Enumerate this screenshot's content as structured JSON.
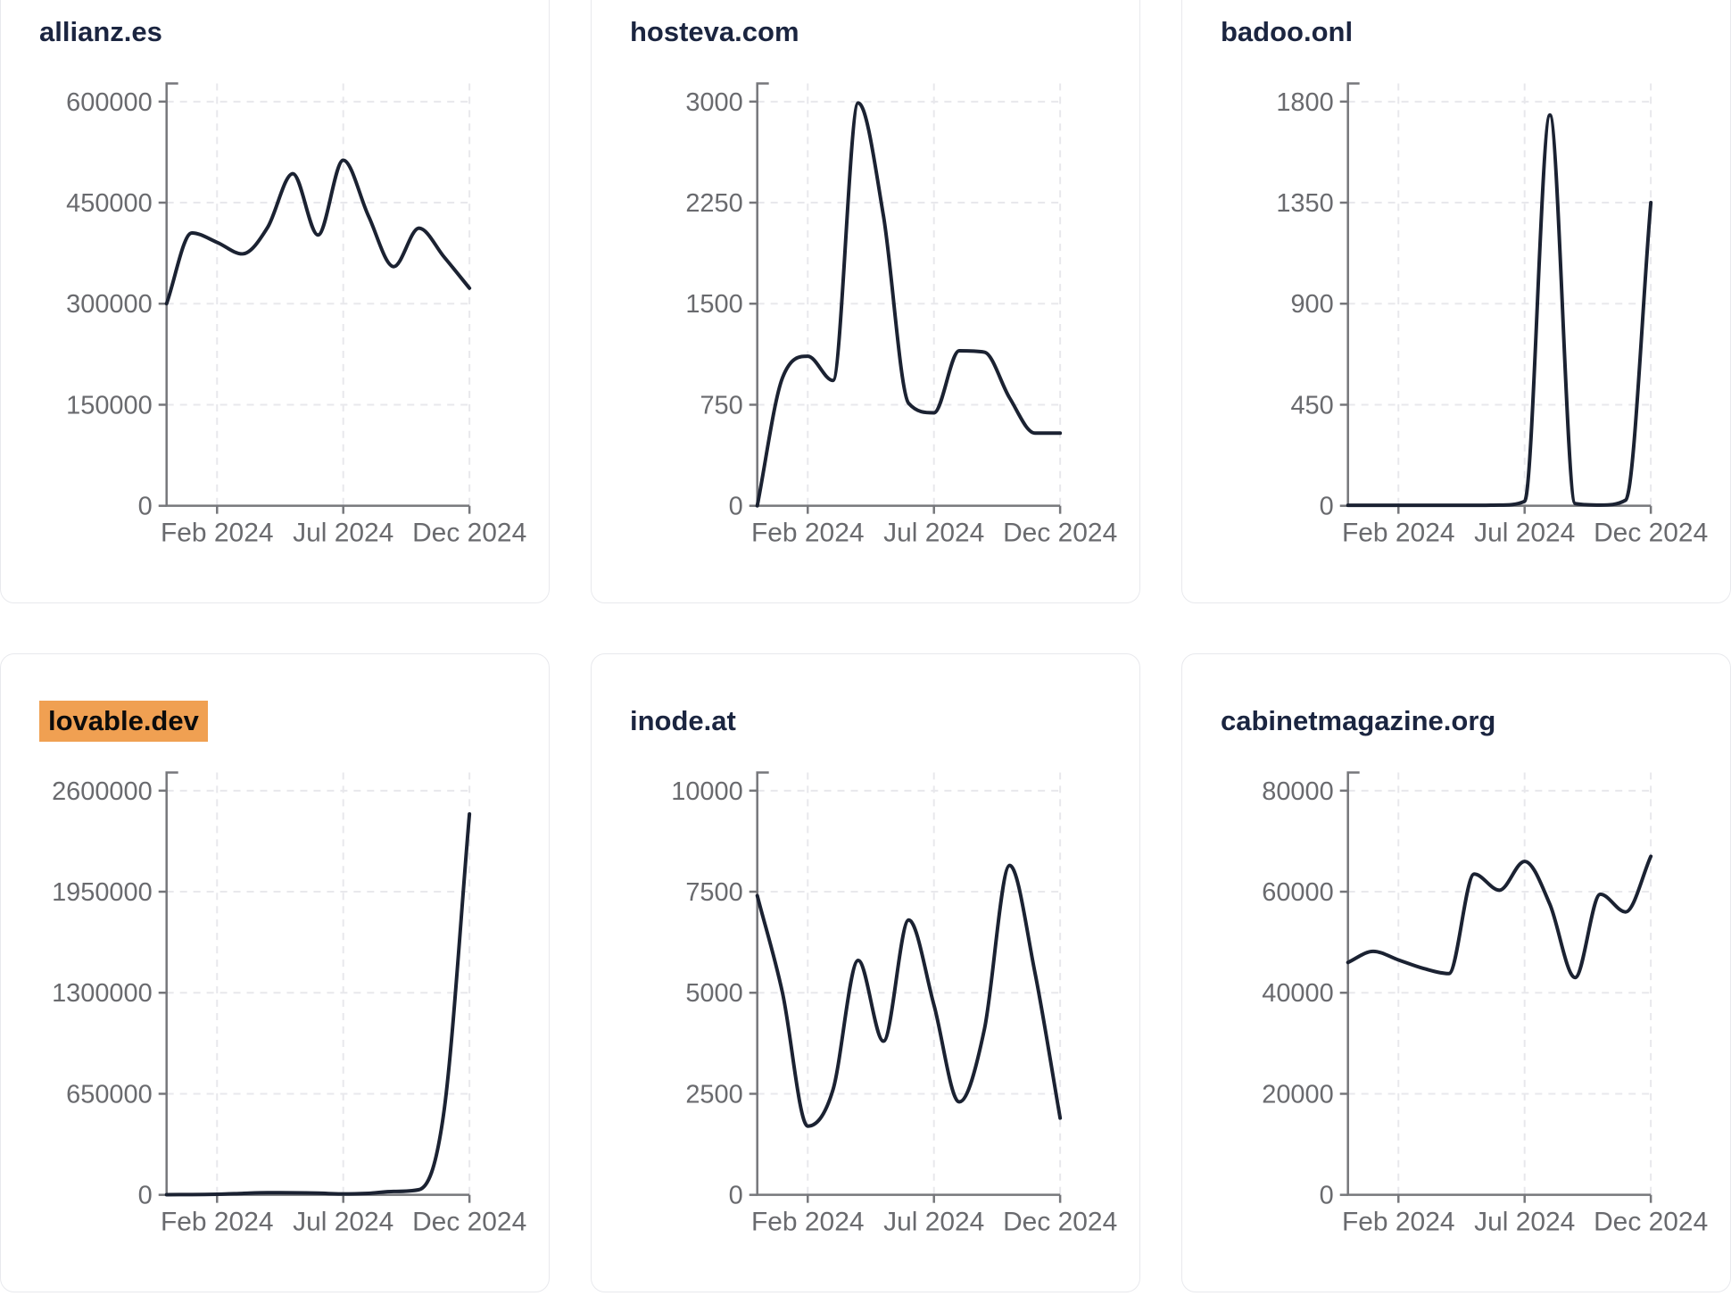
{
  "layout": {
    "rows": 2,
    "cols": 3
  },
  "style": {
    "background": "#ffffff",
    "card_border": "#e8e9ed",
    "title_color": "#1b2540",
    "line_color": "#1b2232",
    "axis_color": "#76777b",
    "tick_label_color": "#696a6e",
    "grid_color": "#e8e8ec",
    "highlight_bg": "#f0a052",
    "highlight_text": "#0c0c0c"
  },
  "chart_data": [
    {
      "type": "line",
      "title": "allianz.es",
      "highlighted": false,
      "n_points": 13,
      "values": [
        300000,
        405000,
        391000,
        374000,
        413000,
        493000,
        402000,
        513000,
        430000,
        355000,
        412000,
        369000,
        323000
      ],
      "y_ticks": [
        0,
        150000,
        300000,
        450000,
        600000
      ],
      "ylim": [
        0,
        627000
      ],
      "x_tick_labels": [
        "Feb 2024",
        "Jul 2024",
        "Dec 2024"
      ],
      "x_tick_indices": [
        2,
        7,
        12
      ],
      "grid": true,
      "legend": false
    },
    {
      "type": "line",
      "title": "hosteva.com",
      "highlighted": false,
      "n_points": 13,
      "values": [
        0,
        950,
        1110,
        930,
        2990,
        2150,
        760,
        690,
        1150,
        1140,
        800,
        540,
        540
      ],
      "y_ticks": [
        0,
        750,
        1500,
        2250,
        3000
      ],
      "ylim": [
        0,
        3135
      ],
      "x_tick_labels": [
        "Feb 2024",
        "Jul 2024",
        "Dec 2024"
      ],
      "x_tick_indices": [
        2,
        7,
        12
      ],
      "grid": true,
      "legend": false
    },
    {
      "type": "line",
      "title": "badoo.onl",
      "highlighted": false,
      "n_points": 13,
      "values": [
        2,
        2,
        2,
        2,
        2,
        2,
        3,
        20,
        1740,
        10,
        3,
        25,
        1350
      ],
      "y_ticks": [
        0,
        450,
        900,
        1350,
        1800
      ],
      "ylim": [
        0,
        1881
      ],
      "x_tick_labels": [
        "Feb 2024",
        "Jul 2024",
        "Dec 2024"
      ],
      "x_tick_indices": [
        2,
        7,
        12
      ],
      "grid": true,
      "legend": false
    },
    {
      "type": "line",
      "title": "lovable.dev",
      "highlighted": true,
      "n_points": 13,
      "values": [
        1000,
        2000,
        4000,
        9000,
        14000,
        13000,
        11000,
        6000,
        10000,
        22000,
        33000,
        550000,
        2450000
      ],
      "y_ticks": [
        0,
        650000,
        1300000,
        1950000,
        2600000
      ],
      "ylim": [
        0,
        2717000
      ],
      "x_tick_labels": [
        "Feb 2024",
        "Jul 2024",
        "Dec 2024"
      ],
      "x_tick_indices": [
        2,
        7,
        12
      ],
      "grid": true,
      "legend": false
    },
    {
      "type": "line",
      "title": "inode.at",
      "highlighted": false,
      "n_points": 13,
      "values": [
        7400,
        5000,
        1700,
        2600,
        5800,
        3800,
        6800,
        4700,
        2300,
        4100,
        8150,
        5500,
        1900
      ],
      "y_ticks": [
        0,
        2500,
        5000,
        7500,
        10000
      ],
      "ylim": [
        0,
        10450
      ],
      "x_tick_labels": [
        "Feb 2024",
        "Jul 2024",
        "Dec 2024"
      ],
      "x_tick_indices": [
        2,
        7,
        12
      ],
      "grid": true,
      "legend": false
    },
    {
      "type": "line",
      "title": "cabinetmagazine.org",
      "highlighted": false,
      "n_points": 13,
      "values": [
        46000,
        48200,
        46500,
        44800,
        43800,
        63500,
        60300,
        66000,
        57500,
        43000,
        59500,
        56000,
        67000
      ],
      "y_ticks": [
        0,
        20000,
        40000,
        60000,
        80000
      ],
      "ylim": [
        0,
        83600
      ],
      "x_tick_labels": [
        "Feb 2024",
        "Jul 2024",
        "Dec 2024"
      ],
      "x_tick_indices": [
        2,
        7,
        12
      ],
      "grid": true,
      "legend": false
    }
  ]
}
